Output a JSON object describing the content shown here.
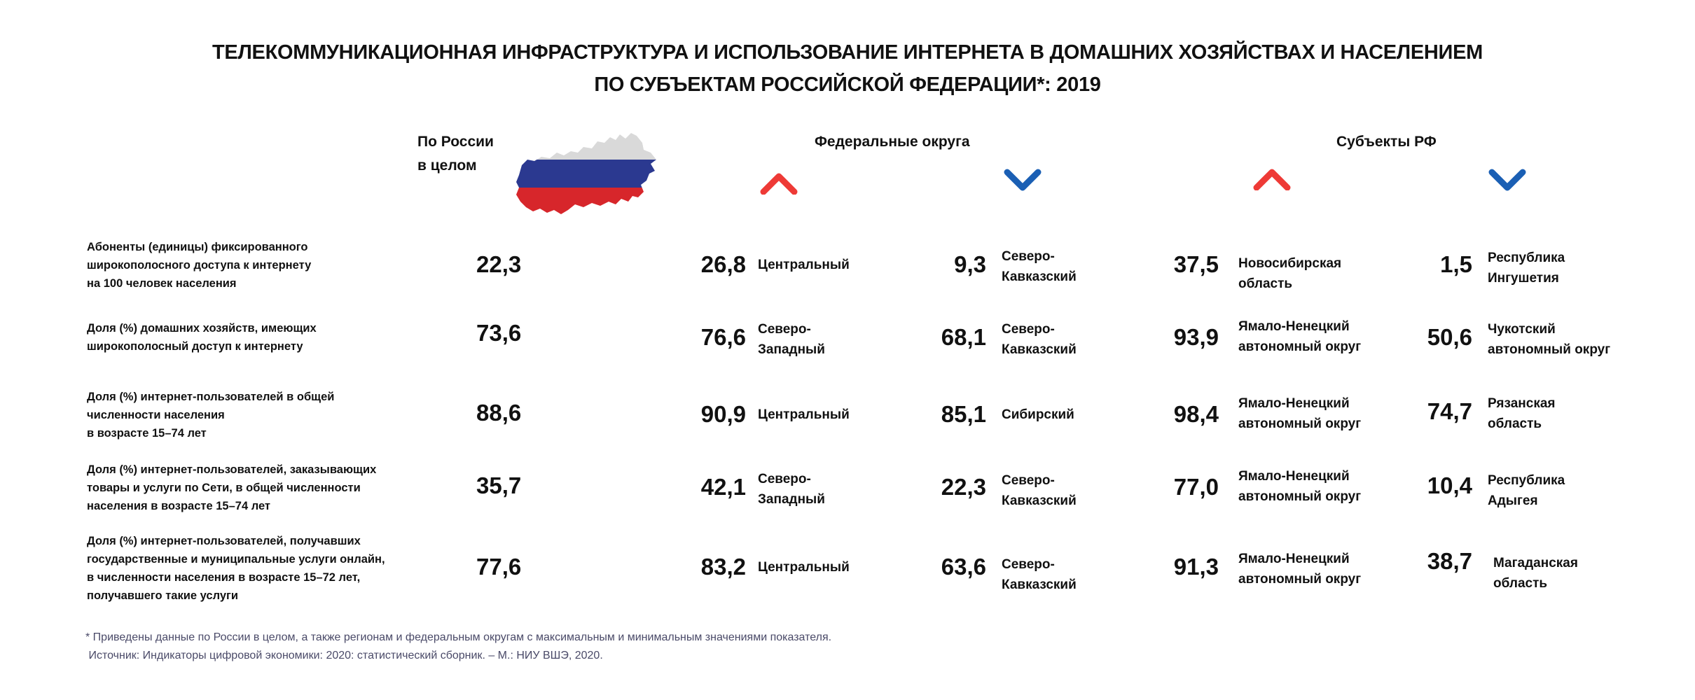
{
  "title": {
    "line1": "ТЕЛЕКОММУНИКАЦИОННАЯ ИНФРАСТРУКТУРА И ИСПОЛЬЗОВАНИЕ ИНТЕРНЕТА В ДОМАШНИХ ХОЗЯЙСТВАХ И НАСЕЛЕНИЕМ",
    "line2": "ПО СУБЪЕКТАМ РОССИЙСКОЙ ФЕДЕРАЦИИ*: 2019"
  },
  "headers": {
    "russia_line1": "По России",
    "russia_line2": "в целом",
    "federal_districts": "Федеральные округа",
    "subjects": "Субъекты РФ"
  },
  "icons": {
    "max": "chevron-up-icon",
    "min": "chevron-down-icon",
    "map": "russia-flag-map-icon"
  },
  "colors": {
    "up": "#ee3a36",
    "down": "#1a5fb4",
    "flag_white": "#d9d9d9",
    "flag_blue": "#2b3990",
    "flag_red": "#d7262b"
  },
  "rows": [
    {
      "label": [
        "Абоненты (единицы) фиксированного",
        "широкополосного доступа к интернету",
        "на 100 человек населения"
      ],
      "russia": "22,3",
      "fd_max": {
        "value": "26,8",
        "name": [
          "Центральный"
        ]
      },
      "fd_min": {
        "value": "9,3",
        "name": [
          "Северо-",
          "Кавказский"
        ]
      },
      "subj_max": {
        "value": "37,5",
        "name": [
          "Новосибирская",
          "область"
        ]
      },
      "subj_min": {
        "value": "1,5",
        "name": [
          "Республика",
          "Ингушетия"
        ]
      }
    },
    {
      "label": [
        "Доля (%) домашних хозяйств, имеющих",
        "широкополосный доступ к интернету"
      ],
      "russia": "73,6",
      "fd_max": {
        "value": "76,6",
        "name": [
          "Северо-",
          "Западный"
        ]
      },
      "fd_min": {
        "value": "68,1",
        "name": [
          "Северо-",
          "Кавказский"
        ]
      },
      "subj_max": {
        "value": "93,9",
        "name": [
          "Ямало-Ненецкий",
          "автономный округ"
        ]
      },
      "subj_min": {
        "value": "50,6",
        "name": [
          "Чукотский",
          "автономный округ"
        ]
      }
    },
    {
      "label": [
        "Доля (%) интернет-пользователей в общей",
        "численности населения",
        "в возрасте 15–74 лет"
      ],
      "russia": "88,6",
      "fd_max": {
        "value": "90,9",
        "name": [
          "Центральный"
        ]
      },
      "fd_min": {
        "value": "85,1",
        "name": [
          "Сибирский"
        ]
      },
      "subj_max": {
        "value": "98,4",
        "name": [
          "Ямало-Ненецкий",
          "автономный округ"
        ]
      },
      "subj_min": {
        "value": "74,7",
        "name": [
          "Рязанская",
          "область"
        ]
      }
    },
    {
      "label": [
        "Доля (%) интернет-пользователей,  заказывающих",
        "товары и услуги по Сети, в общей численности",
        "населения в возрасте 15–74 лет"
      ],
      "russia": "35,7",
      "fd_max": {
        "value": "42,1",
        "name": [
          "Северо-",
          "Западный"
        ]
      },
      "fd_min": {
        "value": "22,3",
        "name": [
          "Северо-",
          "Кавказский"
        ]
      },
      "subj_max": {
        "value": "77,0",
        "name": [
          "Ямало-Ненецкий",
          "автономный округ"
        ]
      },
      "subj_min": {
        "value": "10,4",
        "name": [
          "Республика",
          "Адыгея"
        ]
      }
    },
    {
      "label": [
        "Доля (%)  интернет-пользователей, получавших",
        "государственные и муниципальные услуги онлайн,",
        "в численности населения в возрасте 15–72 лет,",
        "получавшего такие услуги"
      ],
      "russia": "77,6",
      "fd_max": {
        "value": "83,2",
        "name": [
          "Центральный"
        ]
      },
      "fd_min": {
        "value": "63,6",
        "name": [
          "Северо-",
          "Кавказский"
        ]
      },
      "subj_max": {
        "value": "91,3",
        "name": [
          "Ямало-Ненецкий",
          "автономный округ"
        ]
      },
      "subj_min": {
        "value": "38,7",
        "name": [
          "Магаданская",
          "область"
        ]
      }
    }
  ],
  "footnote": {
    "line1": "* Приведены данные по России в целом, а также регионам и федеральным округам с максимальным и минимальным значениями показателя.",
    "line2": " Источник: Индикаторы цифровой экономики: 2020: статистический сборник. – М.: НИУ ВШЭ, 2020."
  }
}
